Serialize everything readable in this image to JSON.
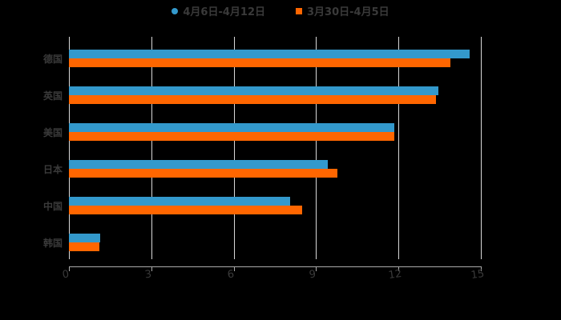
{
  "chart_data": {
    "type": "bar",
    "orientation": "horizontal",
    "title": "",
    "xlabel": "",
    "ylabel": "",
    "categories": [
      "德国",
      "英国",
      "美国",
      "日本",
      "中国",
      "韩国"
    ],
    "series": [
      {
        "name": "4月6日-4月12日",
        "color": "#3399cc",
        "marker": "circle",
        "values": [
          14.6,
          13.45,
          11.85,
          9.43,
          8.05,
          1.14
        ]
      },
      {
        "name": "3月30日-4月5日",
        "color": "#ff6600",
        "marker": "square",
        "values": [
          13.9,
          13.36,
          11.85,
          9.78,
          8.5,
          1.1
        ]
      }
    ],
    "xlim": [
      0,
      15
    ],
    "xticks": [
      "0",
      "3",
      "6",
      "9",
      "12",
      "15"
    ],
    "grid": "vertical",
    "legend_position": "top"
  },
  "legend": {
    "series_1": "4月6日-4月12日",
    "series_2": "3月30日-4月5日"
  }
}
